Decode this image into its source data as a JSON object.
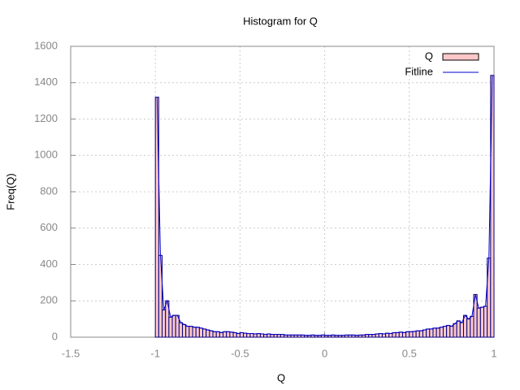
{
  "chart_data": {
    "type": "histogram",
    "title": "Histogram for Q",
    "xlabel": "Q",
    "ylabel": "Freq(Q)",
    "bins": [
      -1,
      -0.98,
      -0.96,
      -0.94,
      -0.92,
      -0.9,
      -0.88,
      -0.86,
      -0.84,
      -0.82,
      -0.8,
      -0.78,
      -0.76,
      -0.74,
      -0.72,
      -0.7,
      -0.68,
      -0.66,
      -0.64,
      -0.62,
      -0.6,
      -0.58,
      -0.56,
      -0.54,
      -0.52,
      -0.5,
      -0.48,
      -0.46,
      -0.44,
      -0.42,
      -0.4,
      -0.38,
      -0.36,
      -0.34,
      -0.32,
      -0.3,
      -0.28,
      -0.26,
      -0.24,
      -0.22,
      -0.2,
      -0.18,
      -0.16,
      -0.14,
      -0.12,
      -0.1,
      -0.08,
      -0.06,
      -0.04,
      -0.02,
      0,
      0.02,
      0.04,
      0.06,
      0.08,
      0.1,
      0.12,
      0.14,
      0.16,
      0.18,
      0.2,
      0.22,
      0.24,
      0.26,
      0.28,
      0.3,
      0.32,
      0.34,
      0.36,
      0.38,
      0.4,
      0.42,
      0.44,
      0.46,
      0.48,
      0.5,
      0.52,
      0.54,
      0.56,
      0.58,
      0.6,
      0.62,
      0.64,
      0.66,
      0.68,
      0.7,
      0.72,
      0.74,
      0.76,
      0.78,
      0.8,
      0.82,
      0.84,
      0.86,
      0.88,
      0.9,
      0.92,
      0.94,
      0.96,
      0.98,
      1
    ],
    "series": [
      {
        "name": "Q",
        "color": "#ffc8c8",
        "stroke": "#000080",
        "values": [
          1320,
          450,
          150,
          200,
          110,
          120,
          120,
          80,
          70,
          60,
          60,
          55,
          55,
          50,
          45,
          40,
          35,
          30,
          30,
          25,
          30,
          30,
          28,
          25,
          20,
          25,
          22,
          20,
          20,
          18,
          20,
          18,
          15,
          18,
          15,
          15,
          15,
          15,
          12,
          12,
          12,
          12,
          12,
          12,
          10,
          10,
          12,
          10,
          10,
          12,
          10,
          10,
          12,
          10,
          10,
          10,
          12,
          12,
          12,
          10,
          12,
          12,
          15,
          15,
          15,
          18,
          20,
          18,
          22,
          20,
          25,
          25,
          28,
          25,
          30,
          30,
          32,
          35,
          35,
          40,
          45,
          45,
          50,
          50,
          55,
          60,
          65,
          60,
          75,
          90,
          80,
          120,
          100,
          115,
          235,
          160,
          165,
          170,
          435,
          1440
        ]
      },
      {
        "name": "Fitline",
        "color": "#0000cc",
        "values": [
          1320,
          450,
          150,
          200,
          110,
          120,
          120,
          80,
          70,
          60,
          60,
          55,
          55,
          50,
          45,
          40,
          35,
          30,
          30,
          25,
          30,
          30,
          28,
          25,
          20,
          25,
          22,
          20,
          20,
          18,
          20,
          18,
          15,
          18,
          15,
          15,
          15,
          15,
          12,
          12,
          12,
          12,
          12,
          12,
          10,
          10,
          12,
          10,
          10,
          12,
          10,
          10,
          12,
          10,
          10,
          10,
          12,
          12,
          12,
          10,
          12,
          12,
          15,
          15,
          15,
          18,
          20,
          18,
          22,
          20,
          25,
          25,
          28,
          25,
          30,
          30,
          32,
          35,
          35,
          40,
          45,
          45,
          50,
          50,
          55,
          60,
          65,
          60,
          75,
          90,
          80,
          120,
          100,
          115,
          235,
          160,
          165,
          170,
          435,
          1440
        ]
      }
    ],
    "xlim": [
      -1.5,
      1
    ],
    "xticks": [
      -1.5,
      -1,
      -0.5,
      0,
      0.5,
      1
    ],
    "ylim": [
      0,
      1600
    ],
    "yticks": [
      0,
      200,
      400,
      600,
      800,
      1000,
      1200,
      1400,
      1600
    ],
    "grid": true,
    "legend": "top-right"
  }
}
